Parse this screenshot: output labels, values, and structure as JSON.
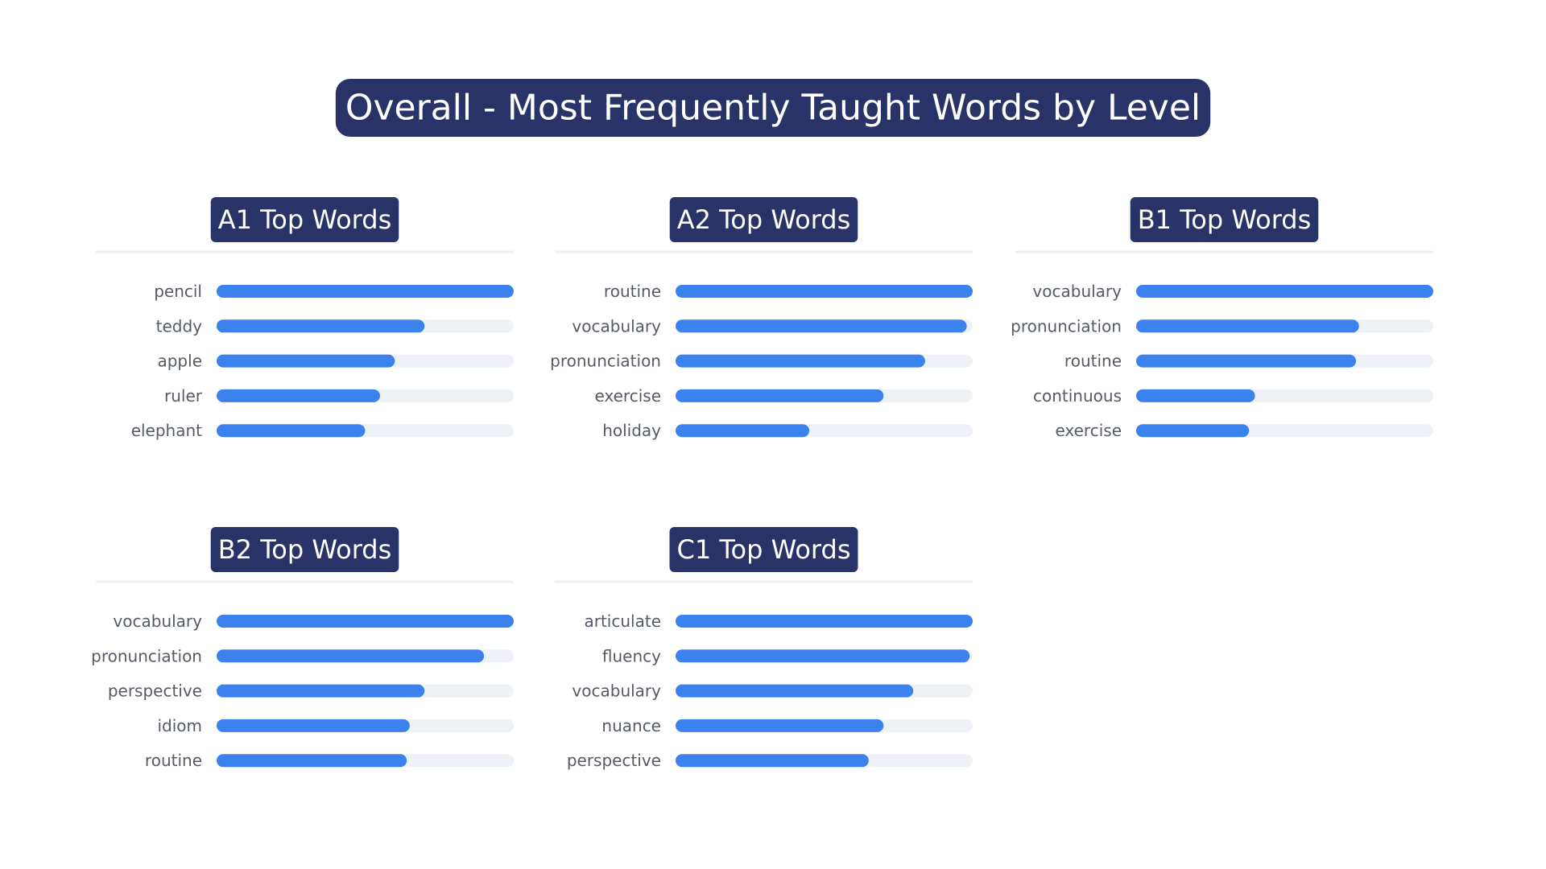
{
  "title": "Overall - Most Frequently Taught Words by Level",
  "chart_data": [
    {
      "type": "bar",
      "title": "A1 Top Words",
      "categories": [
        "pencil",
        "teddy",
        "apple",
        "ruler",
        "elephant"
      ],
      "values": [
        100,
        70,
        60,
        55,
        50
      ],
      "xlim": [
        0,
        100
      ],
      "color": "#3b82ee",
      "track_color": "#eef2f7"
    },
    {
      "type": "bar",
      "title": "A2 Top Words",
      "categories": [
        "routine",
        "vocabulary",
        "pronunciation",
        "exercise",
        "holiday"
      ],
      "values": [
        100,
        98,
        84,
        70,
        45
      ],
      "xlim": [
        0,
        100
      ],
      "color": "#3b82ee",
      "track_color": "#eef2f7"
    },
    {
      "type": "bar",
      "title": "B1 Top Words",
      "categories": [
        "vocabulary",
        "pronunciation",
        "routine",
        "continuous",
        "exercise"
      ],
      "values": [
        100,
        75,
        74,
        40,
        38
      ],
      "xlim": [
        0,
        100
      ],
      "color": "#3b82ee",
      "track_color": "#eef2f7"
    },
    {
      "type": "bar",
      "title": "B2 Top Words",
      "categories": [
        "vocabulary",
        "pronunciation",
        "perspective",
        "idiom",
        "routine"
      ],
      "values": [
        100,
        90,
        70,
        65,
        64
      ],
      "xlim": [
        0,
        100
      ],
      "color": "#3b82ee",
      "track_color": "#eef2f7"
    },
    {
      "type": "bar",
      "title": "C1 Top Words",
      "categories": [
        "articulate",
        "fluency",
        "vocabulary",
        "nuance",
        "perspective"
      ],
      "values": [
        100,
        99,
        80,
        70,
        65
      ],
      "xlim": [
        0,
        100
      ],
      "color": "#3b82ee",
      "track_color": "#eef2f7"
    }
  ]
}
